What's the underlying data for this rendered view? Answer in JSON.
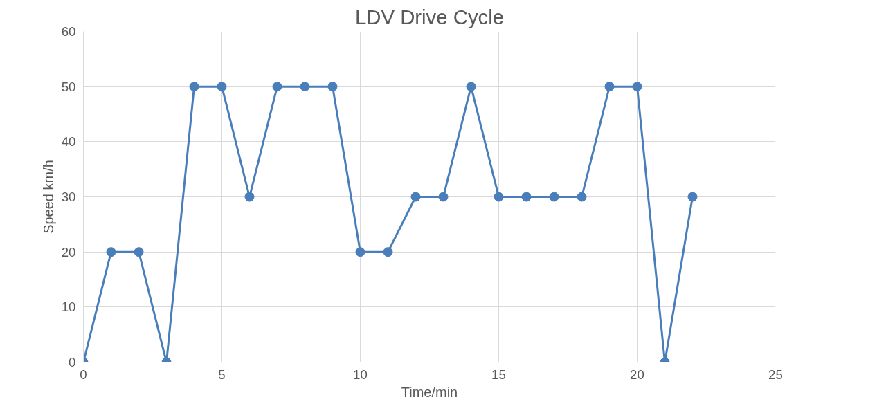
{
  "chart_data": {
    "type": "line",
    "title": "LDV Drive Cycle",
    "xlabel": "Time/min",
    "ylabel": "Speed km/h",
    "x": [
      0,
      1,
      2,
      3,
      4,
      5,
      6,
      7,
      8,
      9,
      10,
      11,
      12,
      13,
      14,
      15,
      16,
      17,
      18,
      19,
      20,
      21,
      22
    ],
    "series": [
      {
        "color": "#4a7ebb",
        "values": [
          0,
          20,
          20,
          0,
          50,
          50,
          30,
          50,
          50,
          50,
          20,
          20,
          30,
          30,
          50,
          30,
          30,
          30,
          30,
          50,
          50,
          0,
          30
        ]
      }
    ],
    "xlim": [
      0,
      25
    ],
    "xticks": [
      0,
      5,
      10,
      15,
      20,
      25
    ],
    "ylim": [
      0,
      60
    ],
    "yticks": [
      0,
      10,
      20,
      30,
      40,
      50,
      60
    ],
    "grid": true,
    "marker": "circle",
    "line_style": "solid"
  }
}
